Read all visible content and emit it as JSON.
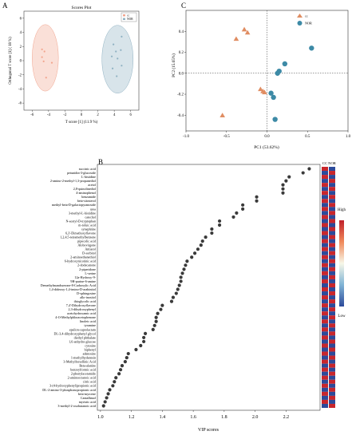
{
  "panels": {
    "A": {
      "letter": "A"
    },
    "B": {
      "letter": "B"
    },
    "C": {
      "letter": "C"
    }
  },
  "chart_data": [
    {
      "panel": "A",
      "type": "scatter",
      "title": "Scores Plot",
      "xlabel": "T score [1] (11.9 %)",
      "ylabel": "Orthogonal T score [1] ( 18 %)",
      "xlim": [
        -7,
        7
      ],
      "ylim": [
        -7,
        7
      ],
      "xticks": [
        -6,
        -4,
        -2,
        0,
        2,
        4,
        6
      ],
      "yticks": [
        -6,
        -4,
        -2,
        0,
        2,
        4,
        6
      ],
      "legend": [
        "cc",
        "NOR"
      ],
      "colors": {
        "cc": "#f2a58e",
        "NOR": "#8fb1c2"
      },
      "series": [
        {
          "name": "cc",
          "points": [
            [
              -4.8,
              1.6
            ],
            [
              -4.5,
              1.3
            ],
            [
              -4.8,
              0.5
            ],
            [
              -3.6,
              -0.3
            ],
            [
              -4.6,
              -0.1
            ],
            [
              -4.3,
              -2.4
            ]
          ],
          "ellipse": {
            "cx": -4.4,
            "cy": 0.4,
            "rx": 1.6,
            "ry": 4.7
          }
        },
        {
          "name": "NOR",
          "points": [
            [
              4.9,
              3.4
            ],
            [
              3.9,
              2.3
            ],
            [
              4.8,
              1.5
            ],
            [
              3.7,
              0.6
            ],
            [
              4.4,
              0.3
            ],
            [
              4.9,
              -0.7
            ],
            [
              3.8,
              -1.1
            ],
            [
              4.3,
              -2.2
            ],
            [
              4.2,
              1.3
            ]
          ],
          "ellipse": {
            "cx": 4.4,
            "cy": 0.2,
            "rx": 1.9,
            "ry": 4.8
          }
        }
      ]
    },
    {
      "panel": "C",
      "type": "scatter",
      "xlabel": "PC1 (53.62%)",
      "ylabel": "PC2 (15.65%)",
      "xlim": [
        -1.0,
        1.0
      ],
      "ylim": [
        -0.55,
        0.6
      ],
      "xticks": [
        -1.0,
        -0.5,
        0.0,
        0.5,
        1.0
      ],
      "xticklabels": [
        "-1.0",
        "-0.5",
        "0.0",
        "0.5",
        "1.0"
      ],
      "yticks": [
        -0.4,
        -0.2,
        0.0,
        0.2,
        0.4
      ],
      "yticklabels": [
        "-0.4",
        "-0.2",
        "0.0",
        "0.2",
        "0.4"
      ],
      "legend": [
        "cc",
        "NOR"
      ],
      "colors": {
        "cc": "#e08d62",
        "NOR": "#3d8aa6"
      },
      "series": [
        {
          "name": "cc",
          "marker": "triangle",
          "points": [
            [
              -0.38,
              0.33
            ],
            [
              -0.28,
              0.42
            ],
            [
              -0.24,
              0.39
            ],
            [
              -0.08,
              -0.15
            ],
            [
              -0.05,
              -0.17
            ],
            [
              -0.03,
              -0.18
            ],
            [
              -0.55,
              -0.4
            ]
          ]
        },
        {
          "name": "NOR",
          "marker": "circle",
          "points": [
            [
              0.55,
              0.24
            ],
            [
              0.22,
              0.09
            ],
            [
              0.15,
              0.02
            ],
            [
              0.13,
              0.0
            ],
            [
              0.05,
              -0.19
            ],
            [
              0.08,
              -0.23
            ],
            [
              0.1,
              -0.44
            ]
          ]
        }
      ]
    },
    {
      "panel": "B",
      "type": "scatter",
      "xlabel": "VIP scores",
      "xlim": [
        0.98,
        2.42
      ],
      "xticks": [
        1.0,
        1.2,
        1.4,
        1.6,
        1.8,
        2.0,
        2.2
      ],
      "xticklabels": [
        "1.0",
        "1.2",
        "1.4",
        "1.6",
        "1.8",
        "2.0",
        "2.2"
      ],
      "categories": [
        "succinic acid",
        "petunidin-3-glucoside",
        "L-histidine",
        "2-amino-2-methyl-1,3-propanediol",
        "acetol",
        "2,8-quinolinediol",
        "4-aminophenol",
        "benzamide",
        "beta-sitosterol",
        "methyl-beta-D-galactopyranoside",
        "urea",
        "3-methyl-L-histidine",
        "catechol",
        "N-acetyl-D-tryptophan",
        "m-toluic acid",
        "synephrine",
        "6,3'-Dimethoxyflavone",
        "1,2,4,5-tetramethylbenzene",
        "pipecolic acid",
        "Alobovirgone",
        "Antiarol",
        "D-sorbitol",
        "2-aminoethanethiol",
        "6-hydroxynicotinic acid",
        "2-dodecanone",
        "2-piperidone",
        "L-serine",
        "12a-Hydroxy-9-",
        "9H-purine-6-amine",
        "Demethylmandsserone-8-Carboxylic Acid",
        "1,4-dideoxy-1,4-imino-D-arabinitol",
        "D-sphingosine",
        "allo-inositol",
        "thioglycolic acid",
        "7,4'-Dihydroxyflavone",
        "2,3-dihydroxyphenyl",
        "acetohydroxamic acid",
        "4-O-Methylphloracetophenone",
        "linoleic acid",
        "tyramine",
        "epsilon-caprolactam",
        "DL-3,4-dihydroxyphenyl glycol",
        "diethyl phthalate",
        "1,6-anhydro-glucose",
        "cytosine",
        "biphenyl",
        "adenosine",
        "1-methylhydantoin",
        "3-Methylforsellinic Acid",
        "Beta-alanine",
        "benzoylformic acid",
        "2-phenylacetamide",
        "2-aminooctanoic acid",
        "citric acid",
        "3-(4-hydroxyphenyl)propionic acid",
        "DL-2-amino-3-phosphonopropionic acid",
        "beta-myrcene",
        "Cantalhmol",
        "myristic acid",
        "3-methyl-2-oxobutanoic acid"
      ],
      "values": [
        2.35,
        2.31,
        2.22,
        2.2,
        2.18,
        2.18,
        2.18,
        2.01,
        2.01,
        1.92,
        1.92,
        1.88,
        1.86,
        1.77,
        1.77,
        1.72,
        1.72,
        1.68,
        1.66,
        1.65,
        1.63,
        1.61,
        1.59,
        1.56,
        1.55,
        1.54,
        1.53,
        1.52,
        1.52,
        1.51,
        1.5,
        1.49,
        1.47,
        1.46,
        1.4,
        1.39,
        1.37,
        1.36,
        1.36,
        1.35,
        1.34,
        1.29,
        1.28,
        1.28,
        1.26,
        1.23,
        1.18,
        1.17,
        1.16,
        1.14,
        1.13,
        1.12,
        1.1,
        1.09,
        1.08,
        1.06,
        1.05,
        1.04,
        1.03,
        1.02
      ],
      "heatmap": {
        "columns": [
          "CC",
          "NOR"
        ],
        "legend_title": "",
        "high_label": "High",
        "low_label": "Low",
        "high_color": "#d7191c",
        "low_color": "#2c4a9a"
      }
    }
  ]
}
